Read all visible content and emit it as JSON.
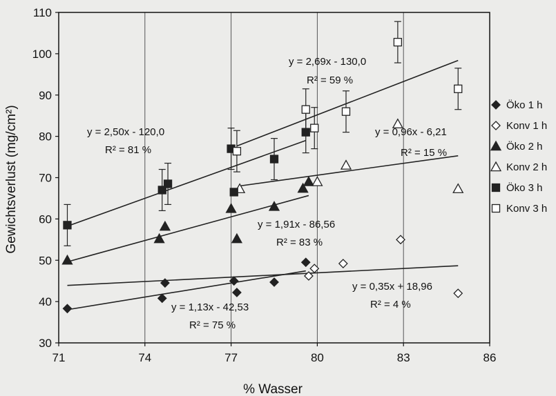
{
  "chart_data": {
    "type": "scatter",
    "title": "",
    "xlabel": "% Wasser",
    "ylabel": "Gewichtsverlust (mg/cm²)",
    "xlim": [
      71,
      86
    ],
    "ylim": [
      30,
      110
    ],
    "xticks": [
      "71",
      "74",
      "77",
      "80",
      "83",
      "86"
    ],
    "yticks": [
      "30",
      "40",
      "50",
      "60",
      "70",
      "80",
      "90",
      "100",
      "110"
    ],
    "legend_position": "right",
    "series": [
      {
        "name": "Öko 1 h",
        "marker": "diamond-filled",
        "points": [
          [
            71.3,
            38.3
          ],
          [
            74.6,
            40.8
          ],
          [
            74.7,
            44.5
          ],
          [
            77.1,
            45.0
          ],
          [
            77.2,
            42.2
          ],
          [
            78.5,
            44.7
          ],
          [
            79.6,
            49.5
          ]
        ]
      },
      {
        "name": "Konv 1 h",
        "marker": "diamond-open",
        "points": [
          [
            79.7,
            46.2
          ],
          [
            79.9,
            48.0
          ],
          [
            80.9,
            49.2
          ],
          [
            82.9,
            55.0
          ],
          [
            84.9,
            42.0
          ]
        ]
      },
      {
        "name": "Öko 2 h",
        "marker": "triangle-filled",
        "points": [
          [
            71.3,
            50.0
          ],
          [
            74.5,
            55.2
          ],
          [
            74.7,
            58.2
          ],
          [
            77.0,
            62.5
          ],
          [
            77.2,
            55.2
          ],
          [
            78.5,
            63.0
          ],
          [
            79.5,
            67.4
          ],
          [
            79.7,
            69.0
          ]
        ]
      },
      {
        "name": "Konv 2 h",
        "marker": "triangle-open",
        "points": [
          [
            77.3,
            67.3
          ],
          [
            80.0,
            69.0
          ],
          [
            81.0,
            73.0
          ],
          [
            82.8,
            83.0
          ],
          [
            84.9,
            67.3
          ]
        ]
      },
      {
        "name": "Öko 3 h",
        "marker": "square-filled",
        "points": [
          [
            71.3,
            58.5
          ],
          [
            74.6,
            67.0
          ],
          [
            74.8,
            68.5
          ],
          [
            77.0,
            77.0
          ],
          [
            77.1,
            66.5
          ],
          [
            78.5,
            74.5
          ],
          [
            79.6,
            81.0
          ]
        ]
      },
      {
        "name": "Konv 3 h",
        "marker": "square-open",
        "points": [
          [
            77.2,
            76.4
          ],
          [
            79.6,
            86.5
          ],
          [
            79.9,
            82.0
          ],
          [
            81.0,
            86.0
          ],
          [
            82.8,
            102.8
          ],
          [
            84.9,
            91.5
          ]
        ]
      }
    ],
    "error_bars": [
      {
        "x": 71.3,
        "y": 58.5,
        "err": 5
      },
      {
        "x": 74.6,
        "y": 67.0,
        "err": 5
      },
      {
        "x": 74.8,
        "y": 68.5,
        "err": 5
      },
      {
        "x": 77.0,
        "y": 77.0,
        "err": 5
      },
      {
        "x": 77.2,
        "y": 76.4,
        "err": 5
      },
      {
        "x": 78.5,
        "y": 74.5,
        "err": 5
      },
      {
        "x": 79.6,
        "y": 81.0,
        "err": 5
      },
      {
        "x": 79.6,
        "y": 86.5,
        "err": 5
      },
      {
        "x": 79.9,
        "y": 82.0,
        "err": 5
      },
      {
        "x": 81.0,
        "y": 86.0,
        "err": 5
      },
      {
        "x": 82.8,
        "y": 102.8,
        "err": 5
      },
      {
        "x": 84.9,
        "y": 91.5,
        "err": 5
      }
    ],
    "trendlines": [
      {
        "x0": 71.3,
        "x1": 84.9,
        "slope": 0.35,
        "intercept": 18.96,
        "clip": [
          77.2,
          84.9
        ],
        "eq": "y = 0,35x + 18,96",
        "r2": "R² = 4 %"
      },
      {
        "x0": 71.3,
        "x1": 79.6,
        "slope": 1.13,
        "intercept": -42.53,
        "eq": "y = 1,13x - 42,53",
        "r2": "R² = 75 %"
      },
      {
        "x0": 71.3,
        "x1": 79.7,
        "slope": 1.91,
        "intercept": -86.56,
        "eq": "y = 1,91x - 86,56",
        "r2": "R² = 83 %"
      },
      {
        "x0": 77.3,
        "x1": 84.9,
        "slope": 0.96,
        "intercept": -6.21,
        "eq": "y = 0,96x - 6,21",
        "r2": "R² = 15 %"
      },
      {
        "x0": 71.3,
        "x1": 79.6,
        "slope": 2.5,
        "intercept": -120.0,
        "eq": "y = 2,50x - 120,0",
        "r2": "R² = 81 %"
      },
      {
        "x0": 77.2,
        "x1": 84.9,
        "slope": 2.69,
        "intercept": -130.0,
        "eq": "y = 2,69x - 130,0",
        "r2": "R² = 59 %"
      }
    ]
  }
}
